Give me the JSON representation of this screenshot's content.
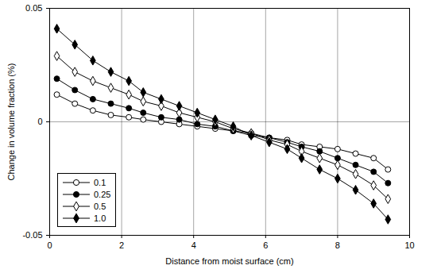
{
  "chart_data": {
    "type": "line",
    "x_label": "Distance from moist surface (cm)",
    "y_label": "Change in volume fraction (%)",
    "x": [
      0.2,
      0.7,
      1.2,
      1.7,
      2.2,
      2.6,
      3.1,
      3.6,
      4.1,
      4.6,
      5.1,
      5.6,
      6.1,
      6.6,
      7.0,
      7.5,
      8.0,
      8.5,
      9.0,
      9.4
    ],
    "series": [
      {
        "name": "0.1",
        "color": "#000000",
        "marker": "circle-open",
        "values": [
          0.012,
          0.008,
          0.005,
          0.003,
          0.002,
          0.001,
          0.0,
          -0.001,
          -0.002,
          -0.003,
          -0.004,
          -0.005,
          -0.007,
          -0.008,
          -0.01,
          -0.011,
          -0.012,
          -0.014,
          -0.016,
          -0.021
        ]
      },
      {
        "name": "0.25",
        "color": "#000000",
        "marker": "circle",
        "values": [
          0.019,
          0.014,
          0.01,
          0.008,
          0.006,
          0.004,
          0.002,
          0.001,
          -0.001,
          -0.002,
          -0.004,
          -0.006,
          -0.007,
          -0.009,
          -0.011,
          -0.013,
          -0.016,
          -0.019,
          -0.022,
          -0.027
        ]
      },
      {
        "name": "0.5",
        "color": "#000000",
        "marker": "diamond-open",
        "values": [
          0.029,
          0.022,
          0.018,
          0.015,
          0.012,
          0.009,
          0.007,
          0.004,
          0.002,
          0.0,
          -0.003,
          -0.005,
          -0.008,
          -0.01,
          -0.013,
          -0.016,
          -0.019,
          -0.023,
          -0.028,
          -0.034
        ]
      },
      {
        "name": "1.0",
        "color": "#000000",
        "marker": "diamond",
        "values": [
          0.041,
          0.034,
          0.027,
          0.022,
          0.018,
          0.013,
          0.01,
          0.007,
          0.004,
          0.001,
          -0.002,
          -0.006,
          -0.009,
          -0.012,
          -0.016,
          -0.021,
          -0.025,
          -0.03,
          -0.036,
          -0.043
        ]
      }
    ],
    "xlim": [
      0,
      10
    ],
    "xticks": [
      0,
      2,
      4,
      6,
      8,
      10
    ],
    "ylim": [
      -0.05,
      0.05
    ],
    "yticks": [
      -0.05,
      0,
      0.05
    ],
    "grid": true,
    "legend": "bottom-left"
  }
}
